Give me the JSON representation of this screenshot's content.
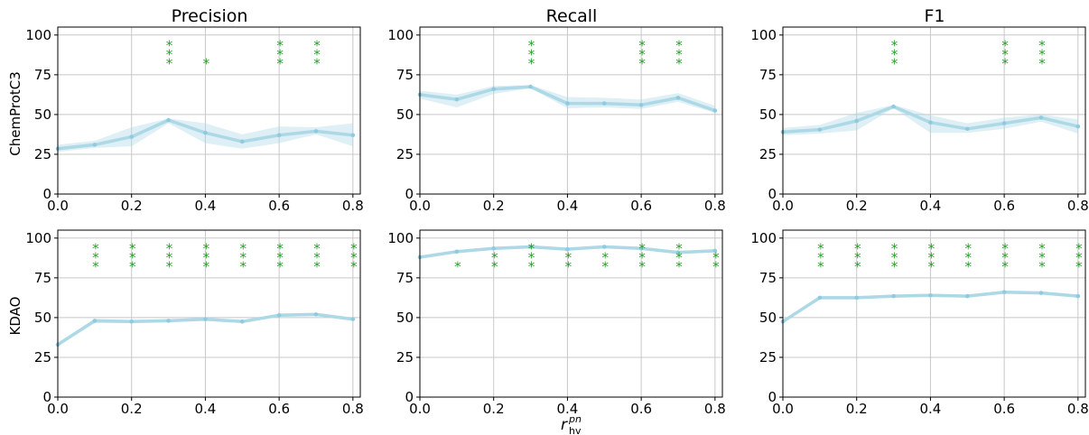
{
  "figure": {
    "column_titles": [
      "Precision",
      "Recall",
      "F1"
    ],
    "row_labels": [
      "ChemProtC3",
      "KDAO"
    ],
    "xlabel_main": "r",
    "xlabel_sub": "hv",
    "xlabel_sup": "pn"
  },
  "colors": {
    "line": "#add8e6",
    "band": "#add8e6",
    "marker": "#8ecbe0",
    "significance": "#2ca02c",
    "grid": "#c8c8c8",
    "axes": "#000000"
  },
  "chart_data": [
    {
      "type": "line",
      "row": "ChemProtC3",
      "metric": "Precision",
      "x": [
        0.0,
        0.1,
        0.2,
        0.3,
        0.4,
        0.5,
        0.6,
        0.7,
        0.8
      ],
      "y": [
        28.5,
        31,
        36,
        46.5,
        38.5,
        33,
        37,
        39.5,
        37
      ],
      "y_low": [
        26.5,
        29,
        30,
        44.5,
        32,
        28.5,
        32,
        37.5,
        30
      ],
      "y_high": [
        31,
        33.5,
        42,
        47.5,
        44.5,
        37.5,
        42.5,
        42,
        44.5
      ],
      "significance": [
        null,
        null,
        null,
        3,
        1,
        null,
        3,
        3,
        null
      ],
      "xlim": [
        0,
        0.82
      ],
      "ylim": [
        0,
        105
      ],
      "xticks": [
        0.0,
        0.2,
        0.4,
        0.6,
        0.8
      ],
      "yticks": [
        0,
        25,
        50,
        75,
        100
      ],
      "grid": true
    },
    {
      "type": "line",
      "row": "ChemProtC3",
      "metric": "Recall",
      "x": [
        0.0,
        0.1,
        0.2,
        0.3,
        0.4,
        0.5,
        0.6,
        0.7,
        0.8
      ],
      "y": [
        62.5,
        59.5,
        66,
        67.5,
        57,
        57,
        56,
        60.5,
        52.5
      ],
      "y_low": [
        60,
        54.5,
        63,
        66.5,
        54,
        54.5,
        53.5,
        58,
        51
      ],
      "y_high": [
        65,
        62.5,
        68,
        68.5,
        61,
        60.5,
        59.5,
        63.5,
        55.5
      ],
      "significance": [
        null,
        null,
        null,
        3,
        null,
        null,
        3,
        3,
        null
      ],
      "xlim": [
        0,
        0.82
      ],
      "ylim": [
        0,
        105
      ],
      "xticks": [
        0.0,
        0.2,
        0.4,
        0.6,
        0.8
      ],
      "yticks": [
        0,
        25,
        50,
        75,
        100
      ],
      "grid": true
    },
    {
      "type": "line",
      "row": "ChemProtC3",
      "metric": "F1",
      "x": [
        0.0,
        0.1,
        0.2,
        0.3,
        0.4,
        0.5,
        0.6,
        0.7,
        0.8
      ],
      "y": [
        39,
        40.5,
        46,
        55,
        45,
        41,
        44.5,
        48,
        42.5
      ],
      "y_low": [
        37,
        38,
        40,
        54,
        38.5,
        38.5,
        41,
        45.5,
        38
      ],
      "y_high": [
        41.5,
        43.5,
        51,
        56,
        49.5,
        44.5,
        48,
        50,
        47
      ],
      "significance": [
        null,
        null,
        null,
        3,
        null,
        null,
        3,
        3,
        null
      ],
      "xlim": [
        0,
        0.82
      ],
      "ylim": [
        0,
        105
      ],
      "xticks": [
        0.0,
        0.2,
        0.4,
        0.6,
        0.8
      ],
      "yticks": [
        0,
        25,
        50,
        75,
        100
      ],
      "grid": true
    },
    {
      "type": "line",
      "row": "KDAO",
      "metric": "Precision",
      "x": [
        0.0,
        0.1,
        0.2,
        0.3,
        0.4,
        0.5,
        0.6,
        0.7,
        0.8
      ],
      "y": [
        33,
        48,
        47.5,
        48,
        49,
        47.5,
        51.5,
        52,
        49
      ],
      "y_low": [
        32,
        46.5,
        46.5,
        47,
        48,
        46.5,
        50.5,
        51,
        48
      ],
      "y_high": [
        34,
        49,
        48.5,
        49,
        50,
        48.5,
        52.5,
        53,
        50
      ],
      "significance": [
        null,
        3,
        3,
        3,
        3,
        3,
        3,
        3,
        3
      ],
      "xlim": [
        0,
        0.82
      ],
      "ylim": [
        0,
        105
      ],
      "xticks": [
        0.0,
        0.2,
        0.4,
        0.6,
        0.8
      ],
      "yticks": [
        0,
        25,
        50,
        75,
        100
      ],
      "grid": true
    },
    {
      "type": "line",
      "row": "KDAO",
      "metric": "Recall",
      "x": [
        0.0,
        0.1,
        0.2,
        0.3,
        0.4,
        0.5,
        0.6,
        0.7,
        0.8
      ],
      "y": [
        88,
        91.5,
        93.5,
        94.5,
        93,
        94.5,
        93.5,
        91,
        92
      ],
      "y_low": [
        87,
        90.5,
        92.5,
        93.5,
        92,
        93.5,
        92.5,
        90,
        91
      ],
      "y_high": [
        89,
        92.5,
        94.5,
        95.5,
        94,
        95.5,
        94.5,
        92,
        93
      ],
      "significance": [
        null,
        1,
        2,
        3,
        2,
        2,
        3,
        3,
        2
      ],
      "xlim": [
        0,
        0.82
      ],
      "ylim": [
        0,
        105
      ],
      "xticks": [
        0.0,
        0.2,
        0.4,
        0.6,
        0.8
      ],
      "yticks": [
        0,
        25,
        50,
        75,
        100
      ],
      "grid": true
    },
    {
      "type": "line",
      "row": "KDAO",
      "metric": "F1",
      "x": [
        0.0,
        0.1,
        0.2,
        0.3,
        0.4,
        0.5,
        0.6,
        0.7,
        0.8
      ],
      "y": [
        47.5,
        62.5,
        62.5,
        63.5,
        64,
        63.5,
        66,
        65.5,
        63.5
      ],
      "y_low": [
        46.5,
        61.5,
        61.5,
        62.5,
        63,
        62.5,
        65,
        64.5,
        62.5
      ],
      "y_high": [
        48.5,
        63.5,
        63.5,
        64.5,
        65,
        64.5,
        67,
        66.5,
        64.5
      ],
      "significance": [
        null,
        3,
        3,
        3,
        3,
        3,
        3,
        3,
        3
      ],
      "xlim": [
        0,
        0.82
      ],
      "ylim": [
        0,
        105
      ],
      "xticks": [
        0.0,
        0.2,
        0.4,
        0.6,
        0.8
      ],
      "yticks": [
        0,
        25,
        50,
        75,
        100
      ],
      "grid": true
    }
  ]
}
